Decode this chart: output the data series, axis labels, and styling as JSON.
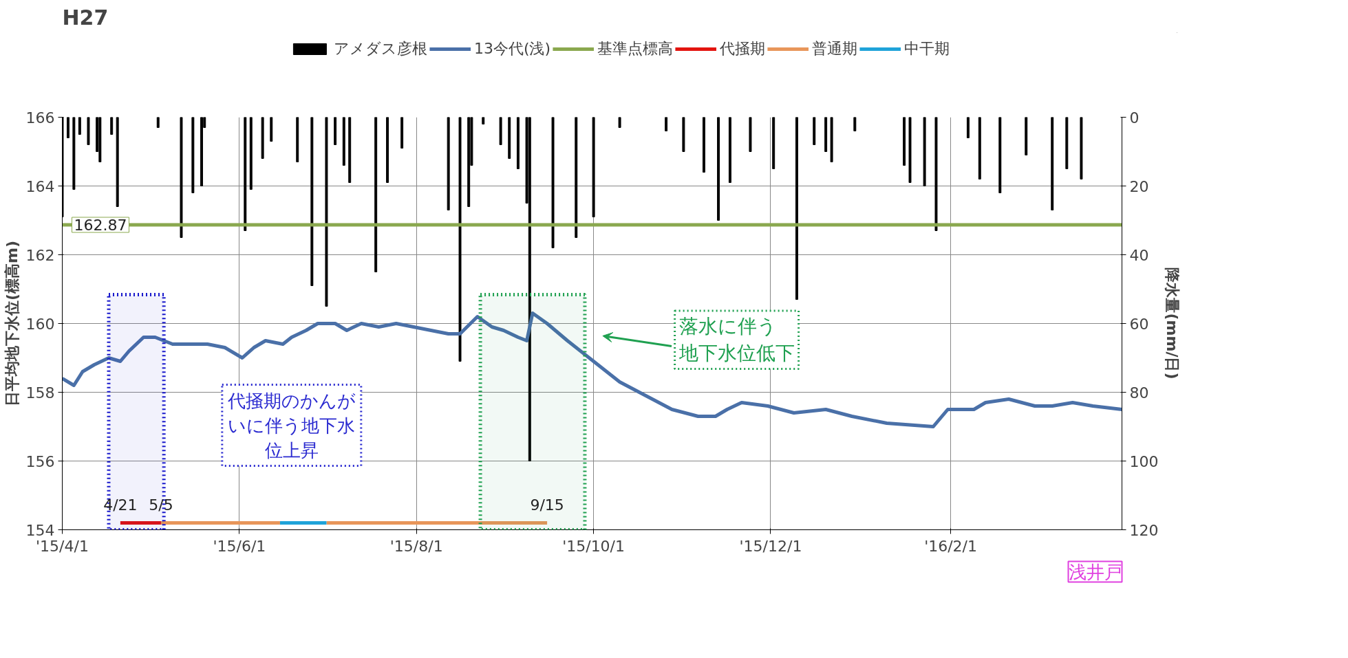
{
  "chart_data": {
    "type": "line",
    "title": "H27",
    "ylabel": "日平均地下水位(標高m)",
    "y2label": "降水量(mm/日)",
    "xlim": [
      "2015-04-01",
      "2016-03-31"
    ],
    "xticks": [
      {
        "value": "2015-04-01",
        "label": "'15/4/1"
      },
      {
        "value": "2015-06-01",
        "label": "'15/6/1"
      },
      {
        "value": "2015-08-01",
        "label": "'15/8/1"
      },
      {
        "value": "2015-10-01",
        "label": "'15/10/1"
      },
      {
        "value": "2015-12-01",
        "label": "'15/12/1"
      },
      {
        "value": "2016-02-01",
        "label": "'16/2/1"
      }
    ],
    "ylim": [
      154,
      166
    ],
    "yticks": [
      154,
      156,
      158,
      160,
      162,
      164,
      166
    ],
    "y2lim": [
      120,
      0
    ],
    "y2ticks": [
      0,
      20,
      40,
      60,
      80,
      100,
      120
    ],
    "grid": true,
    "legend": "top",
    "series": [
      {
        "name": "アメダス彦根",
        "type": "bar",
        "axis": "y2",
        "color": "#000000",
        "x": [
          "2015-04-01",
          "2015-04-03",
          "2015-04-05",
          "2015-04-07",
          "2015-04-10",
          "2015-04-13",
          "2015-04-14",
          "2015-04-18",
          "2015-04-20",
          "2015-05-04",
          "2015-05-12",
          "2015-05-16",
          "2015-05-19",
          "2015-05-20",
          "2015-06-03",
          "2015-06-05",
          "2015-06-09",
          "2015-06-12",
          "2015-06-21",
          "2015-06-26",
          "2015-07-01",
          "2015-07-04",
          "2015-07-07",
          "2015-07-09",
          "2015-07-18",
          "2015-07-22",
          "2015-07-27",
          "2015-08-12",
          "2015-08-16",
          "2015-08-19",
          "2015-08-20",
          "2015-08-24",
          "2015-08-30",
          "2015-09-02",
          "2015-09-05",
          "2015-09-08",
          "2015-09-09",
          "2015-09-17",
          "2015-09-25",
          "2015-10-01",
          "2015-10-10",
          "2015-10-26",
          "2015-11-01",
          "2015-11-08",
          "2015-11-13",
          "2015-11-17",
          "2015-11-24",
          "2015-12-02",
          "2015-12-10",
          "2015-12-16",
          "2015-12-20",
          "2015-12-22",
          "2015-12-30",
          "2016-01-16",
          "2016-01-18",
          "2016-01-23",
          "2016-01-27",
          "2016-02-07",
          "2016-02-11",
          "2016-02-18",
          "2016-02-27",
          "2016-03-07",
          "2016-03-12",
          "2016-03-17"
        ],
        "values": [
          29,
          6,
          21,
          5,
          8,
          10,
          13,
          5,
          26,
          3,
          35,
          22,
          20,
          3,
          33,
          21,
          12,
          7,
          13,
          49,
          55,
          8,
          14,
          19,
          45,
          19,
          9,
          27,
          71,
          26,
          14,
          2,
          8,
          12,
          15,
          25,
          100,
          38,
          35,
          29,
          3,
          4,
          10,
          16,
          30,
          19,
          10,
          15,
          53,
          8,
          10,
          13,
          4,
          14,
          19,
          20,
          33,
          6,
          18,
          22,
          11,
          27,
          15,
          18
        ]
      },
      {
        "name": "13今代(浅)",
        "color": "#4a70a8",
        "x": [
          "2015-04-01",
          "2015-04-05",
          "2015-04-08",
          "2015-04-12",
          "2015-04-17",
          "2015-04-21",
          "2015-04-24",
          "2015-04-29",
          "2015-05-03",
          "2015-05-09",
          "2015-05-15",
          "2015-05-21",
          "2015-05-27",
          "2015-06-02",
          "2015-06-06",
          "2015-06-10",
          "2015-06-16",
          "2015-06-19",
          "2015-06-24",
          "2015-06-28",
          "2015-07-04",
          "2015-07-08",
          "2015-07-13",
          "2015-07-19",
          "2015-07-25",
          "2015-07-31",
          "2015-08-06",
          "2015-08-12",
          "2015-08-16",
          "2015-08-22",
          "2015-08-27",
          "2015-08-31",
          "2015-09-05",
          "2015-09-08",
          "2015-09-10",
          "2015-09-15",
          "2015-09-22",
          "2015-10-01",
          "2015-10-10",
          "2015-10-19",
          "2015-10-28",
          "2015-11-06",
          "2015-11-12",
          "2015-11-16",
          "2015-11-21",
          "2015-11-30",
          "2015-12-09",
          "2015-12-20",
          "2015-12-29",
          "2016-01-10",
          "2016-01-26",
          "2016-01-31",
          "2016-02-09",
          "2016-02-13",
          "2016-02-21",
          "2016-03-01",
          "2016-03-07",
          "2016-03-14",
          "2016-03-21",
          "2016-03-31"
        ],
        "values": [
          158.4,
          158.2,
          158.6,
          158.8,
          159.0,
          158.9,
          159.2,
          159.6,
          159.6,
          159.4,
          159.4,
          159.4,
          159.3,
          159.0,
          159.3,
          159.5,
          159.4,
          159.6,
          159.8,
          160.0,
          160.0,
          159.8,
          160.0,
          159.9,
          160.0,
          159.9,
          159.8,
          159.7,
          159.7,
          160.2,
          159.9,
          159.8,
          159.6,
          159.5,
          160.3,
          160.0,
          159.5,
          158.9,
          158.3,
          157.9,
          157.5,
          157.3,
          157.3,
          157.5,
          157.7,
          157.6,
          157.4,
          157.5,
          157.3,
          157.1,
          157.0,
          157.5,
          157.5,
          157.7,
          157.8,
          157.6,
          157.6,
          157.7,
          157.6,
          157.5
        ]
      },
      {
        "name": "基準点標高",
        "color": "#8aa84e",
        "x": [
          "2015-04-01",
          "2016-03-31"
        ],
        "values": [
          162.87,
          162.87
        ],
        "value_labels": [
          "162.87",
          null
        ]
      },
      {
        "name": "代掻期",
        "color": "#e3140f",
        "x": [
          "2015-04-21",
          "2015-05-05"
        ],
        "values": [
          154.2,
          154.2
        ]
      },
      {
        "name": "普通期",
        "color": "#e8965a",
        "x": [
          "2015-05-05",
          "2015-06-15",
          "2015-06-23",
          "2015-07-01",
          "2015-09-15"
        ],
        "values": [
          154.2,
          154.2,
          null,
          154.2,
          154.2
        ]
      },
      {
        "name": "中干期",
        "color": "#1fa3d9",
        "x": [
          "2015-06-15",
          "2015-07-01"
        ],
        "values": [
          154.2,
          154.2
        ]
      }
    ],
    "bands": [
      {
        "axis": "x",
        "from": "2015-04-17",
        "to": "2015-05-06",
        "color": "#1a1acc"
      },
      {
        "axis": "x",
        "from": "2015-08-23",
        "to": "2015-09-28",
        "color": "#1fa050"
      }
    ],
    "annotations": [
      "代掻期のかんがいに伴う地下水位上昇",
      "落水に伴う地下水位低下",
      "浅井戸",
      {
        "text": "4/21",
        "x": "2015-04-21",
        "y": 154.2
      },
      {
        "text": "5/5",
        "x": "2015-05-05",
        "y": 154.2
      },
      {
        "text": "9/15",
        "x": "2015-09-15",
        "y": 154.2
      }
    ]
  }
}
